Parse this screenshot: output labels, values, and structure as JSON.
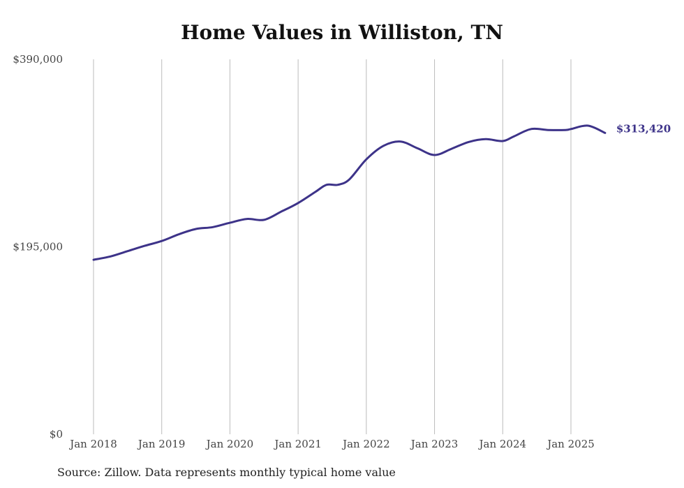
{
  "chart_data": {
    "type": "line",
    "title": "Home Values in Williston, TN",
    "xlabel": "",
    "ylabel": "",
    "source": "Source: Zillow. Data represents monthly typical home value",
    "ylim": [
      0,
      390000
    ],
    "y_ticks": [
      {
        "value": 0,
        "label": "$0"
      },
      {
        "value": 195000,
        "label": "$195,000"
      },
      {
        "value": 390000,
        "label": "$390,000"
      }
    ],
    "x_ticks": [
      {
        "value": "2018-01",
        "label": "Jan 2018"
      },
      {
        "value": "2019-01",
        "label": "Jan 2019"
      },
      {
        "value": "2020-01",
        "label": "Jan 2020"
      },
      {
        "value": "2021-01",
        "label": "Jan 2021"
      },
      {
        "value": "2022-01",
        "label": "Jan 2022"
      },
      {
        "value": "2023-01",
        "label": "Jan 2023"
      },
      {
        "value": "2024-01",
        "label": "Jan 2024"
      },
      {
        "value": "2025-01",
        "label": "Jan 2025"
      }
    ],
    "grid": {
      "vertical": true,
      "horizontal": false
    },
    "line_color": "#3d3389",
    "end_label": "$313,420",
    "series": [
      {
        "dates": [
          "2018-01",
          "2018-04",
          "2018-07",
          "2018-10",
          "2019-01",
          "2019-04",
          "2019-07",
          "2019-10",
          "2020-01",
          "2020-04",
          "2020-07",
          "2020-10",
          "2021-01",
          "2021-04",
          "2021-06",
          "2021-08",
          "2021-10",
          "2022-01",
          "2022-04",
          "2022-07",
          "2022-10",
          "2023-01",
          "2023-04",
          "2023-07",
          "2023-10",
          "2024-01",
          "2024-03",
          "2024-06",
          "2024-09",
          "2024-12",
          "2025-01",
          "2025-04",
          "2025-07"
        ],
        "values": [
          181500,
          185000,
          190500,
          196000,
          201000,
          208000,
          213500,
          215500,
          220000,
          224000,
          223000,
          231500,
          240500,
          252000,
          259500,
          259500,
          265000,
          286000,
          300000,
          304500,
          297500,
          290500,
          297000,
          304000,
          307000,
          305000,
          310000,
          317500,
          316500,
          316500,
          317500,
          321000,
          313420
        ]
      }
    ]
  }
}
